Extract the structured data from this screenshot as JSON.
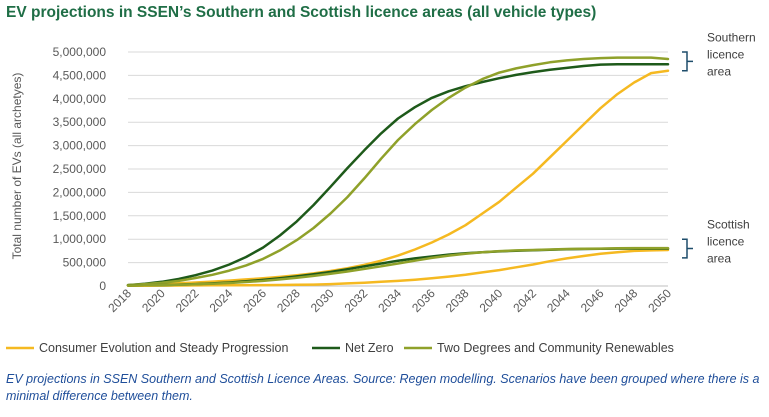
{
  "title": "EV projections in SSEN’s Southern and Scottish licence areas (all vehicle types)",
  "caption": "EV projections in SSEN Southern and Scottish Licence Areas. Source: Regen modelling. Scenarios have been grouped where there is a minimal difference between them.",
  "colors": {
    "title": "#1f6e46",
    "caption": "#1f4e9a",
    "cesp": "#f5b921",
    "nz": "#1e5a1a",
    "td": "#8fa12a"
  },
  "chart_data": {
    "type": "line",
    "ylabel": "Total number of EVs (all archetyes)",
    "ylim": [
      0,
      5000000
    ],
    "yticks": [
      "0",
      "500,000",
      "1,000,000",
      "1,500,000",
      "2,000,000",
      "2,500,000",
      "3,000,000",
      "3,500,000",
      "4,000,000",
      "4,500,000",
      "5,000,000"
    ],
    "xtick_labels": [
      "2018",
      "2020",
      "2022",
      "2024",
      "2026",
      "2028",
      "2030",
      "2032",
      "2034",
      "2036",
      "2038",
      "2040",
      "2042",
      "2044",
      "2046",
      "2048",
      "2050"
    ],
    "x": [
      2018,
      2019,
      2020,
      2021,
      2022,
      2023,
      2024,
      2025,
      2026,
      2027,
      2028,
      2029,
      2030,
      2031,
      2032,
      2033,
      2034,
      2035,
      2036,
      2037,
      2038,
      2039,
      2040,
      2041,
      2042,
      2043,
      2044,
      2045,
      2046,
      2047,
      2048,
      2049,
      2050
    ],
    "grid": true,
    "legend_position": "bottom",
    "legend": [
      "Consumer Evolution and Steady Progression",
      "Net Zero",
      "Two Degrees and Community Renewables"
    ],
    "series": [
      {
        "name": "Consumer Evolution and Steady Progression",
        "area": "Southern",
        "color": "#f5b921",
        "values": [
          20000,
          30000,
          45000,
          60000,
          75000,
          95000,
          115000,
          140000,
          165000,
          195000,
          230000,
          270000,
          320000,
          380000,
          450000,
          540000,
          650000,
          780000,
          930000,
          1100000,
          1300000,
          1550000,
          1800000,
          2100000,
          2400000,
          2750000,
          3100000,
          3450000,
          3800000,
          4100000,
          4350000,
          4550000,
          4600000
        ]
      },
      {
        "name": "Net Zero",
        "area": "Southern",
        "color": "#1e5a1a",
        "values": [
          20000,
          50000,
          90000,
          150000,
          230000,
          330000,
          460000,
          620000,
          820000,
          1080000,
          1380000,
          1730000,
          2120000,
          2520000,
          2900000,
          3260000,
          3580000,
          3820000,
          4020000,
          4160000,
          4270000,
          4360000,
          4440000,
          4510000,
          4570000,
          4620000,
          4660000,
          4700000,
          4730000,
          4740000,
          4740000,
          4740000,
          4740000
        ]
      },
      {
        "name": "Two Degrees and Community Renewables",
        "area": "Southern",
        "color": "#8fa12a",
        "values": [
          20000,
          40000,
          70000,
          110000,
          170000,
          240000,
          330000,
          440000,
          580000,
          760000,
          980000,
          1240000,
          1550000,
          1900000,
          2300000,
          2720000,
          3120000,
          3460000,
          3760000,
          4020000,
          4240000,
          4420000,
          4560000,
          4650000,
          4720000,
          4780000,
          4820000,
          4850000,
          4870000,
          4880000,
          4880000,
          4880000,
          4850000
        ]
      },
      {
        "name": "Consumer Evolution and Steady Progression",
        "area": "Scottish",
        "color": "#f5b921",
        "values": [
          5000,
          6000,
          8000,
          10000,
          12000,
          14000,
          16000,
          18000,
          20000,
          22000,
          25000,
          30000,
          40000,
          55000,
          70000,
          90000,
          110000,
          135000,
          165000,
          200000,
          240000,
          290000,
          340000,
          400000,
          460000,
          530000,
          590000,
          640000,
          690000,
          720000,
          750000,
          760000,
          770000
        ]
      },
      {
        "name": "Net Zero",
        "area": "Scottish",
        "color": "#1e5a1a",
        "values": [
          10000,
          15000,
          20000,
          30000,
          40000,
          55000,
          75000,
          100000,
          130000,
          165000,
          205000,
          250000,
          300000,
          360000,
          420000,
          480000,
          540000,
          590000,
          630000,
          670000,
          700000,
          720000,
          740000,
          755000,
          765000,
          775000,
          785000,
          790000,
          795000,
          800000,
          800000,
          800000,
          800000
        ]
      },
      {
        "name": "Two Degrees and Community Renewables",
        "area": "Scottish",
        "color": "#8fa12a",
        "values": [
          10000,
          15000,
          20000,
          28000,
          38000,
          50000,
          65000,
          85000,
          110000,
          140000,
          175000,
          215000,
          260000,
          310000,
          365000,
          420000,
          480000,
          540000,
          600000,
          650000,
          690000,
          720000,
          745000,
          760000,
          770000,
          780000,
          790000,
          795000,
          800000,
          805000,
          810000,
          810000,
          810000
        ]
      }
    ],
    "annotations": [
      {
        "text": "Southern licence area",
        "lines": [
          "Southern",
          "licence",
          "area"
        ],
        "range": [
          4600000,
          5000000
        ]
      },
      {
        "text": "Scottish licence area",
        "lines": [
          "Scottish",
          "licence",
          "area"
        ],
        "range": [
          600000,
          1000000
        ]
      }
    ]
  }
}
